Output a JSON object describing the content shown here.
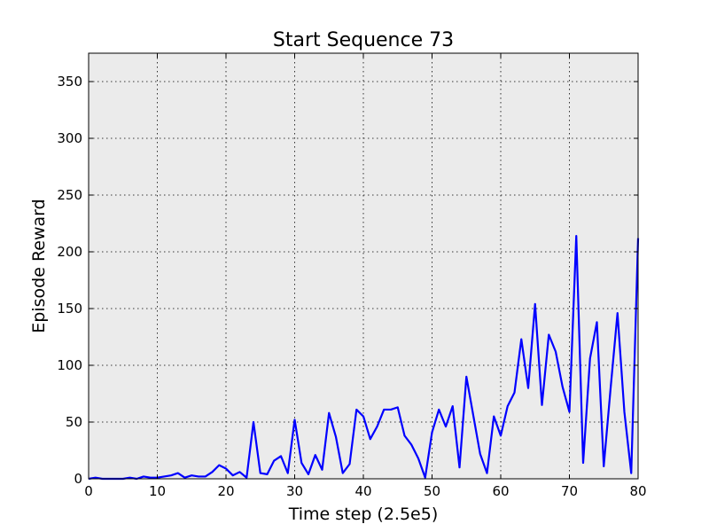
{
  "chart_data": {
    "type": "line",
    "title": "Start Sequence 73",
    "xlabel": "Time step (2.5e5)",
    "ylabel": "Episode Reward",
    "xlim": [
      0,
      80
    ],
    "ylim": [
      0,
      375
    ],
    "xticks": [
      0,
      10,
      20,
      30,
      40,
      50,
      60,
      70,
      80
    ],
    "yticks": [
      0,
      50,
      100,
      150,
      200,
      250,
      300,
      350
    ],
    "grid": true,
    "legend": "none",
    "colors": {
      "line": "#0000ff",
      "background": "#ebebeb"
    },
    "series": [
      {
        "x": [
          0,
          1,
          2,
          3,
          4,
          5,
          6,
          7,
          8,
          9,
          10,
          11,
          12,
          13,
          14,
          15,
          16,
          17,
          18,
          19,
          20,
          21,
          22,
          23,
          24,
          25,
          26,
          27,
          28,
          29,
          30,
          31,
          32,
          33,
          34,
          35,
          36,
          37,
          38,
          39,
          40,
          41,
          42,
          43,
          44,
          45,
          46,
          47,
          48,
          49,
          50,
          51,
          52,
          53,
          54,
          55,
          56,
          57,
          58,
          59,
          60,
          61,
          62,
          63,
          64,
          65,
          66,
          67,
          68,
          69,
          70,
          71,
          72,
          73,
          74,
          75,
          76,
          77,
          78,
          79,
          80
        ],
        "y": [
          0,
          1,
          0,
          0,
          0,
          0,
          1,
          0,
          2,
          1,
          1,
          2,
          3,
          5,
          1,
          3,
          2,
          2,
          6,
          12,
          9,
          3,
          6,
          1,
          50,
          5,
          4,
          16,
          20,
          5,
          52,
          14,
          4,
          21,
          8,
          58,
          37,
          5,
          13,
          61,
          55,
          35,
          46,
          61,
          61,
          63,
          38,
          30,
          18,
          1,
          41,
          61,
          46,
          64,
          10,
          90,
          56,
          22,
          5,
          55,
          38,
          64,
          76,
          123,
          80,
          154,
          65,
          127,
          112,
          81,
          59,
          214,
          14,
          106,
          138,
          11,
          80,
          146,
          59,
          5,
          212
        ]
      }
    ]
  }
}
